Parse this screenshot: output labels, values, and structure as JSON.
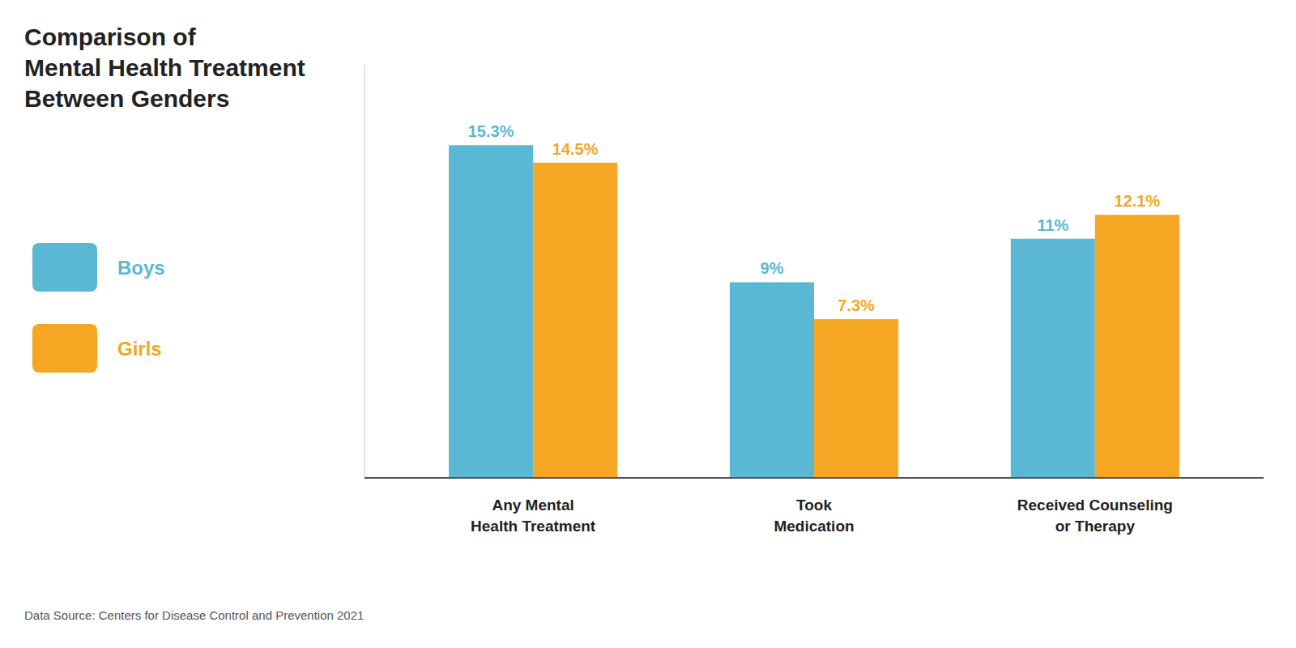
{
  "chart_data": {
    "type": "bar",
    "title": "Comparison of\nMental Health Treatment\nBetween Genders",
    "categories": [
      "Any Mental\nHealth Treatment",
      "Took\nMedication",
      "Received Counseling\nor Therapy"
    ],
    "series": [
      {
        "name": "Boys",
        "color": "#5BB8D4",
        "values": [
          15.3,
          9.0,
          11.0
        ],
        "value_labels": [
          "15.3%",
          "9%",
          "11%"
        ]
      },
      {
        "name": "Girls",
        "color": "#F5A623",
        "values": [
          14.5,
          7.3,
          12.1
        ],
        "value_labels": [
          "14.5%",
          "7.3%",
          "12.1%"
        ]
      }
    ],
    "ylim": [
      0,
      19
    ],
    "yticks": [],
    "tick_labels": "x",
    "data_labels": true,
    "legend": "left",
    "annotations": [
      "Data Source: Centers for Disease Control and Prevention 2021"
    ]
  }
}
